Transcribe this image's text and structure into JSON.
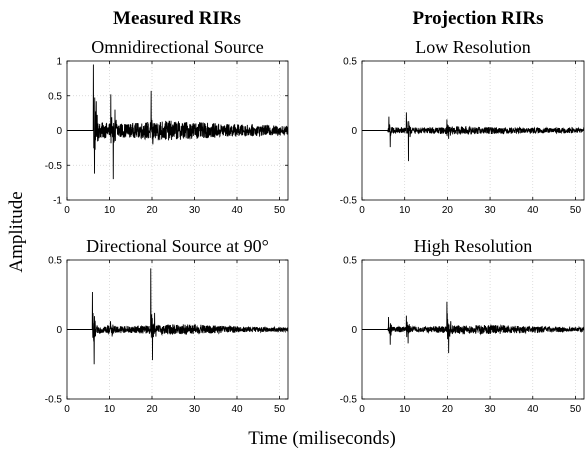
{
  "figure": {
    "column_titles": [
      "Measured RIRs",
      "Projection RIRs"
    ],
    "ylabel": "Amplitude",
    "xlabel": "Time (miliseconds)"
  },
  "chart_data": [
    {
      "type": "line",
      "title": "Omnidirectional Source",
      "xlim": [
        0,
        52
      ],
      "ylim": [
        -1,
        1
      ],
      "xticks": [
        0,
        10,
        20,
        30,
        40,
        50
      ],
      "yticks": [
        -1,
        -0.5,
        0,
        0.5,
        1
      ],
      "ytick_labels": [
        "-1",
        "-0.5",
        "0",
        "0.5",
        "1"
      ],
      "grid": true,
      "series": [
        {
          "color": "#000000",
          "events": [
            {
              "t": 6.2,
              "amp": 0.95
            },
            {
              "t": 6.5,
              "amp": -0.62
            },
            {
              "t": 6.9,
              "amp": 0.42
            },
            {
              "t": 10.3,
              "amp": 0.52
            },
            {
              "t": 10.9,
              "amp": -0.7
            },
            {
              "t": 11.3,
              "amp": 0.3
            },
            {
              "t": 19.8,
              "amp": 0.57
            },
            {
              "t": 20.2,
              "amp": -0.2
            }
          ],
          "noise_envelope": [
            [
              0,
              0.0
            ],
            [
              6.3,
              0.0
            ],
            [
              6.4,
              0.12
            ],
            [
              15,
              0.1
            ],
            [
              22,
              0.15
            ],
            [
              28,
              0.13
            ],
            [
              36,
              0.1
            ],
            [
              44,
              0.08
            ],
            [
              52,
              0.07
            ]
          ]
        }
      ]
    },
    {
      "type": "line",
      "title": "Low Resolution",
      "xlim": [
        0,
        52
      ],
      "ylim": [
        -0.5,
        0.5
      ],
      "xticks": [
        0,
        10,
        20,
        30,
        40,
        50
      ],
      "yticks": [
        -0.5,
        0,
        0.5
      ],
      "ytick_labels": [
        "-0.5",
        "0",
        "0.5"
      ],
      "grid": true,
      "series": [
        {
          "color": "#000000",
          "events": [
            {
              "t": 6.3,
              "amp": 0.1
            },
            {
              "t": 6.6,
              "amp": -0.12
            },
            {
              "t": 10.4,
              "amp": 0.13
            },
            {
              "t": 10.9,
              "amp": -0.22
            },
            {
              "t": 19.9,
              "amp": 0.08
            },
            {
              "t": 20.3,
              "amp": -0.06
            }
          ],
          "noise_envelope": [
            [
              0,
              0.0
            ],
            [
              6.0,
              0.0
            ],
            [
              6.2,
              0.025
            ],
            [
              15,
              0.02
            ],
            [
              22,
              0.03
            ],
            [
              30,
              0.025
            ],
            [
              40,
              0.02
            ],
            [
              52,
              0.018
            ]
          ]
        }
      ]
    },
    {
      "type": "line",
      "title": "Directional Source at 90°",
      "xlim": [
        0,
        52
      ],
      "ylim": [
        -0.5,
        0.5
      ],
      "xticks": [
        0,
        10,
        20,
        30,
        40,
        50
      ],
      "yticks": [
        -0.5,
        0,
        0.5
      ],
      "ytick_labels": [
        "-0.5",
        "0",
        "0.5"
      ],
      "grid": true,
      "series": [
        {
          "color": "#000000",
          "events": [
            {
              "t": 6.0,
              "amp": 0.27
            },
            {
              "t": 6.4,
              "amp": -0.25
            },
            {
              "t": 10.2,
              "amp": 0.06
            },
            {
              "t": 10.6,
              "amp": -0.05
            },
            {
              "t": 19.7,
              "amp": 0.44
            },
            {
              "t": 20.1,
              "amp": -0.22
            },
            {
              "t": 20.6,
              "amp": 0.12
            }
          ],
          "noise_envelope": [
            [
              0,
              0.0
            ],
            [
              5.9,
              0.0
            ],
            [
              6.1,
              0.03
            ],
            [
              15,
              0.025
            ],
            [
              22,
              0.035
            ],
            [
              28,
              0.04
            ],
            [
              34,
              0.03
            ],
            [
              42,
              0.02
            ],
            [
              52,
              0.015
            ]
          ]
        }
      ]
    },
    {
      "type": "line",
      "title": "High Resolution",
      "xlim": [
        0,
        52
      ],
      "ylim": [
        -0.5,
        0.5
      ],
      "xticks": [
        0,
        10,
        20,
        30,
        40,
        50
      ],
      "yticks": [
        -0.5,
        0,
        0.5
      ],
      "ytick_labels": [
        "-0.5",
        "0",
        "0.5"
      ],
      "grid": true,
      "series": [
        {
          "color": "#000000",
          "events": [
            {
              "t": 6.2,
              "amp": 0.09
            },
            {
              "t": 6.6,
              "amp": -0.11
            },
            {
              "t": 10.4,
              "amp": 0.1
            },
            {
              "t": 10.8,
              "amp": -0.1
            },
            {
              "t": 19.9,
              "amp": 0.2
            },
            {
              "t": 20.3,
              "amp": -0.17
            },
            {
              "t": 20.8,
              "amp": 0.06
            }
          ],
          "noise_envelope": [
            [
              0,
              0.0
            ],
            [
              6.0,
              0.0
            ],
            [
              6.2,
              0.02
            ],
            [
              15,
              0.02
            ],
            [
              22,
              0.03
            ],
            [
              30,
              0.035
            ],
            [
              38,
              0.025
            ],
            [
              52,
              0.015
            ]
          ]
        }
      ]
    }
  ]
}
